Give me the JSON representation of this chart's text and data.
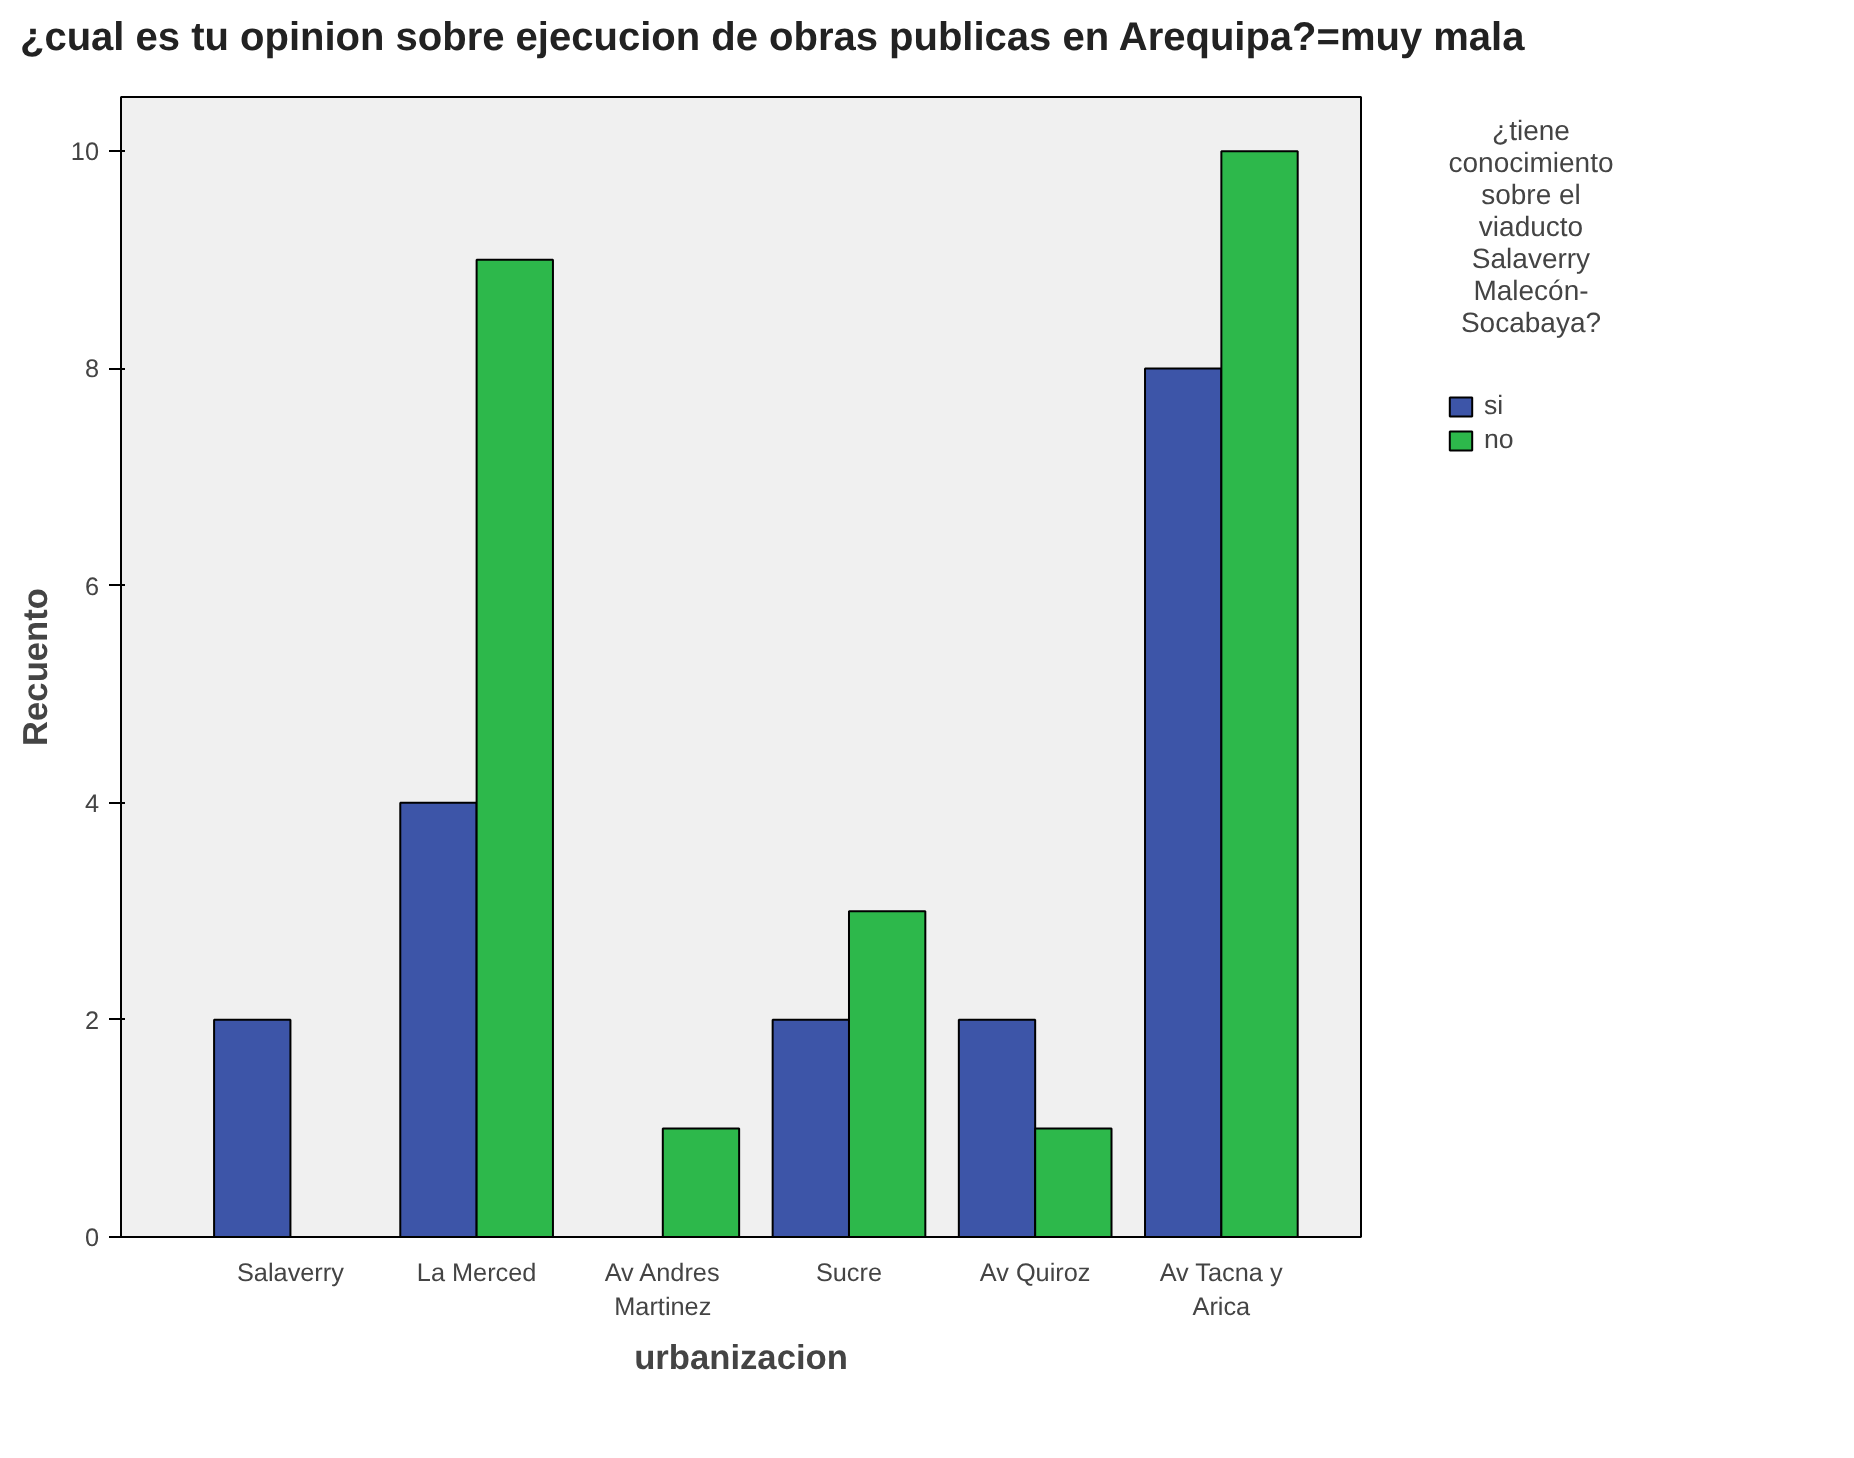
{
  "chart_data": {
    "type": "bar",
    "title": "¿cual es tu opinion sobre ejecucion de obras publicas en Arequipa?=muy mala",
    "xlabel": "urbanizacion",
    "ylabel": "Recuento",
    "legend_title": "¿tiene conocimiento sobre el viaducto Salaverry Malecón-Socabaya?",
    "categories": [
      "Salaverry",
      "La Merced",
      "Av Andres Martinez",
      "Sucre",
      "Av Quiroz",
      "Av Tacna y Arica"
    ],
    "series": [
      {
        "name": "si",
        "color": "#3d55a8",
        "values": [
          2,
          4,
          0,
          2,
          2,
          8
        ]
      },
      {
        "name": "no",
        "color": "#2db84b",
        "values": [
          0,
          9,
          1,
          3,
          1,
          10
        ]
      }
    ],
    "ylim": [
      0,
      10.5
    ],
    "yticks": [
      0,
      2,
      4,
      6,
      8,
      10
    ],
    "grid": false,
    "legend": "right"
  }
}
